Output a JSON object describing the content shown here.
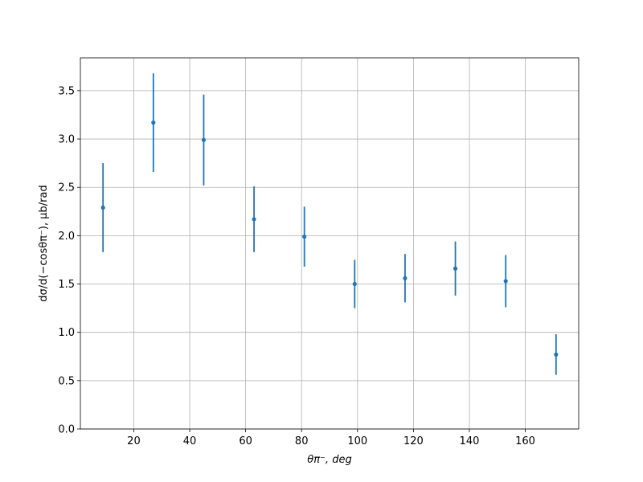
{
  "chart_data": {
    "type": "errorbar",
    "xlabel": "θπ⁻, deg",
    "ylabel": "dσ/d(−cosθπ⁻), μb/rad",
    "x": [
      9,
      27,
      45,
      63,
      81,
      99,
      117,
      135,
      153,
      171
    ],
    "series": [
      {
        "color": "#1f77b4",
        "values": [
          2.29,
          3.17,
          2.99,
          2.17,
          1.99,
          1.5,
          1.56,
          1.66,
          1.53,
          0.77
        ],
        "errors": [
          0.46,
          0.51,
          0.47,
          0.34,
          0.31,
          0.25,
          0.25,
          0.28,
          0.27,
          0.21
        ]
      }
    ],
    "xlim": [
      0.9,
      179.1
    ],
    "ylim": [
      0,
      3.84
    ],
    "xticks": [
      20,
      40,
      60,
      80,
      100,
      120,
      140,
      160
    ],
    "yticks": [
      {
        "value": 0,
        "label": "0.0"
      },
      0.5,
      {
        "value": 1,
        "label": "1.0"
      },
      1.5,
      {
        "value": 2,
        "label": "2.0"
      },
      2.5,
      {
        "value": 3,
        "label": "3.0"
      },
      3.5
    ],
    "grid": true
  }
}
